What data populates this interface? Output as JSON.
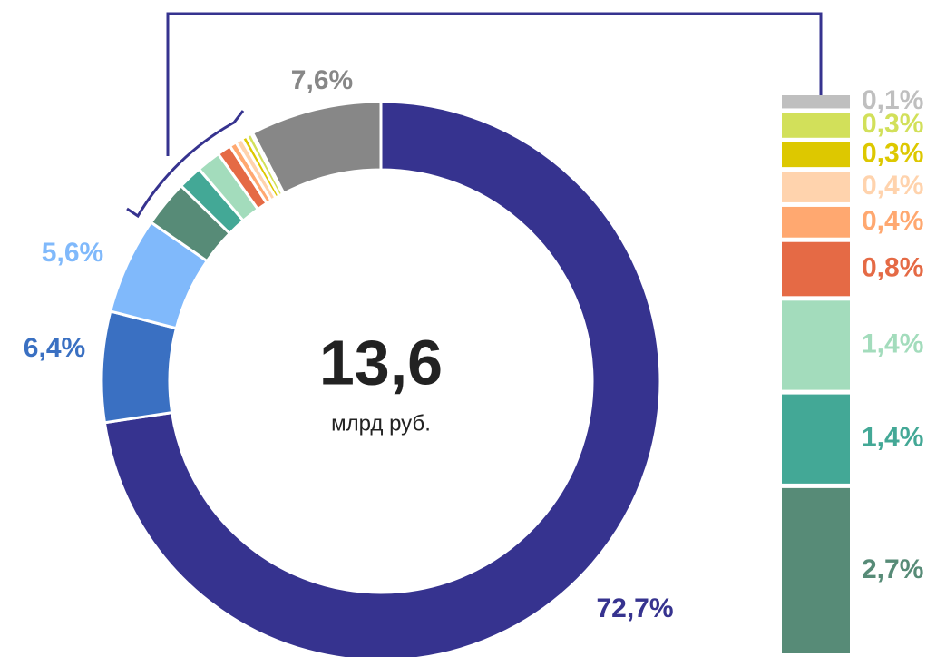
{
  "chart_data": [
    {
      "type": "donut",
      "center_value": "13,6",
      "center_unit": "млрд руб.",
      "values": [
        72.7,
        6.4,
        5.6,
        2.7,
        1.4,
        1.4,
        0.8,
        0.4,
        0.4,
        0.3,
        0.3,
        0.1,
        7.6
      ],
      "value_labels": [
        "72,7%",
        "6,4%",
        "5,6%",
        null,
        null,
        null,
        null,
        null,
        null,
        null,
        null,
        null,
        "7,6%"
      ],
      "colors": [
        "#36338f",
        "#3a70c2",
        "#80b9fb",
        "#578b77",
        "#43a896",
        "#a3dcbc",
        "#e56a45",
        "#ffa870",
        "#ffd3ad",
        "#ddc800",
        "#d2e05a",
        "#bfbfbf",
        "#878787"
      ]
    },
    {
      "type": "stacked-bar",
      "values": [
        0.1,
        0.3,
        0.3,
        0.4,
        0.4,
        0.8,
        1.4,
        1.4,
        2.7
      ],
      "value_labels": [
        "0,1%",
        "0,3%",
        "0,3%",
        "0,4%",
        "0,4%",
        "0,8%",
        "1,4%",
        "1,4%",
        "2,7%"
      ],
      "colors": [
        "#bfbfbf",
        "#d2e05a",
        "#ddc800",
        "#ffd3ad",
        "#ffa870",
        "#e56a45",
        "#a3dcbc",
        "#43a896",
        "#578b77"
      ]
    }
  ]
}
